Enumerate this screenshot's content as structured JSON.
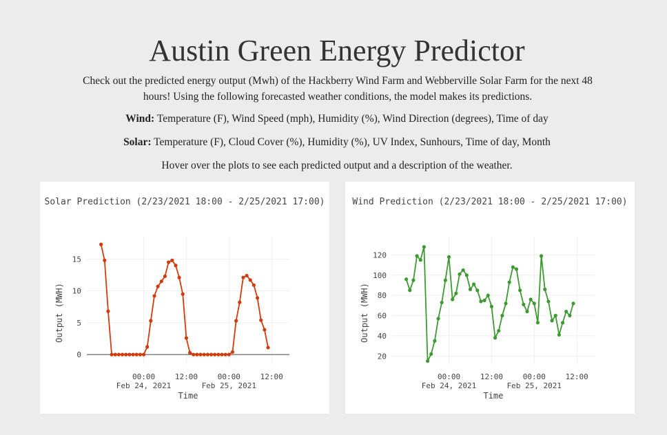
{
  "header": {
    "title": "Austin Green Energy Predictor",
    "intro": "Check out the predicted energy output (Mwh) of the Hackberry Wind Farm and Webberville Solar Farm for the next 48 hours! Using the following forecasted weather conditions, the model makes its predictions.",
    "wind_label": "Wind:",
    "wind_features": "Temperature (F), Wind Speed (mph), Humidity (%), Wind Direction (degrees), Time of day",
    "solar_label": "Solar:",
    "solar_features": "Temperature (F), Cloud Cover (%), Humidity (%), UV Index, Sunhours, Time of day, Month",
    "hover_note": "Hover over the plots to see each predicted output and a description of the weather."
  },
  "chart_data": [
    {
      "type": "line",
      "title": "Solar Prediction (2/23/2021 18:00 - 2/25/2021 17:00)",
      "xlabel": "Time",
      "ylabel": "Output (MWH)",
      "x_start_hour": 18,
      "x_ticks": [
        {
          "hour": 30,
          "label": "00:00",
          "sublabel": "Feb 24, 2021"
        },
        {
          "hour": 42,
          "label": "12:00",
          "sublabel": ""
        },
        {
          "hour": 54,
          "label": "00:00",
          "sublabel": "Feb 25, 2021"
        },
        {
          "hour": 66,
          "label": "12:00",
          "sublabel": ""
        }
      ],
      "y_ticks": [
        0,
        5,
        10,
        15
      ],
      "xlim": [
        14,
        71
      ],
      "ylim": [
        -1.5,
        18.5
      ],
      "color": "#d03b0c",
      "values": [
        17.3,
        14.8,
        6.8,
        0,
        0,
        0,
        0,
        0,
        0,
        0,
        0,
        0,
        0.0,
        1.2,
        5.3,
        9.2,
        10.7,
        11.5,
        12.3,
        14.5,
        14.8,
        14.0,
        12.1,
        9.5,
        2.6,
        0.3,
        0,
        0,
        0,
        0,
        0,
        0,
        0,
        0,
        0,
        0,
        0.0,
        0.4,
        5.3,
        8.2,
        12.1,
        12.4,
        11.7,
        10.9,
        8.9,
        5.4,
        3.9,
        1.1
      ]
    },
    {
      "type": "line",
      "title": "Wind Prediction (2/23/2021 18:00 - 2/25/2021 17:00)",
      "xlabel": "Time",
      "ylabel": "Output (MWH)",
      "x_start_hour": 18,
      "x_ticks": [
        {
          "hour": 30,
          "label": "00:00",
          "sublabel": "Feb 24, 2021"
        },
        {
          "hour": 42,
          "label": "12:00",
          "sublabel": ""
        },
        {
          "hour": 54,
          "label": "00:00",
          "sublabel": "Feb 25, 2021"
        },
        {
          "hour": 66,
          "label": "12:00",
          "sublabel": ""
        }
      ],
      "y_ticks": [
        20,
        40,
        60,
        80,
        100,
        120
      ],
      "xlim": [
        14,
        71
      ],
      "ylim": [
        12,
        138
      ],
      "color": "#3d9a31",
      "values": [
        96,
        85,
        95,
        119,
        115,
        128,
        15,
        22,
        35,
        57,
        73,
        95,
        118,
        76,
        82,
        101,
        105,
        100,
        86,
        91,
        85,
        74,
        75,
        80,
        69,
        38,
        45,
        60,
        72,
        93,
        108,
        106,
        85,
        71,
        64,
        76,
        72,
        53,
        119,
        86,
        74,
        55,
        60,
        41,
        53,
        64,
        60,
        72
      ]
    }
  ]
}
